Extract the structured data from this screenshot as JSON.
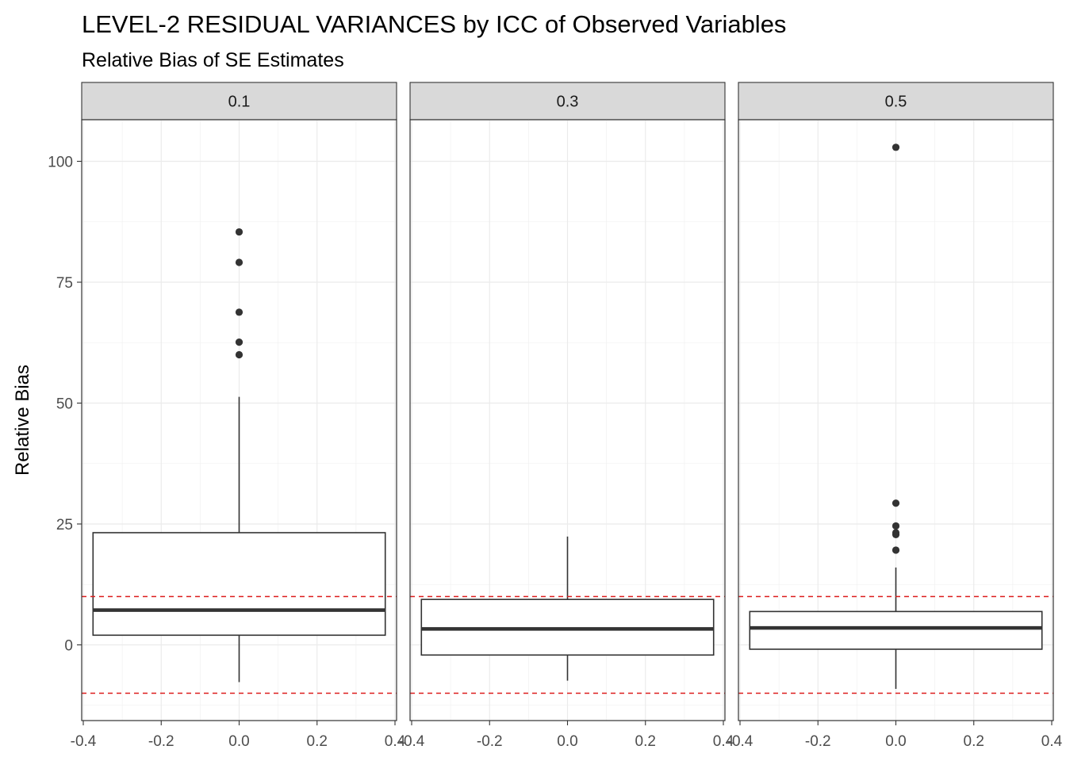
{
  "chart_data": {
    "type": "boxplot",
    "title": "LEVEL-2 RESIDUAL VARIANCES by ICC of Observed Variables",
    "subtitle": "Relative Bias of SE Estimates",
    "ylabel": "Relative Bias",
    "xlabel": "",
    "xlim": [
      -0.4,
      0.4
    ],
    "ylim": [
      -15,
      108
    ],
    "x_ticks": [
      -0.4,
      -0.2,
      0.0,
      0.2,
      0.4
    ],
    "x_tick_labels": [
      "-0.4",
      "-0.2",
      "0.0",
      "0.2",
      "0.4"
    ],
    "y_ticks": [
      0,
      25,
      50,
      75,
      100
    ],
    "y_tick_labels": [
      "0",
      "25",
      "50",
      "75",
      "100"
    ],
    "reference_lines": [
      10,
      -10
    ],
    "reference_line_color": "#dd1c1c",
    "grid": true,
    "panels": [
      {
        "label": "0.1",
        "box": {
          "whisker_low": -7.7,
          "q1": 2.0,
          "median": 7.2,
          "q3": 23.2,
          "whisker_high": 51.3
        },
        "outliers": [
          85.4,
          79.1,
          68.8,
          62.6,
          60.0
        ]
      },
      {
        "label": "0.3",
        "box": {
          "whisker_low": -7.4,
          "q1": -2.1,
          "median": 3.3,
          "q3": 9.4,
          "whisker_high": 22.4
        },
        "outliers": []
      },
      {
        "label": "0.5",
        "box": {
          "whisker_low": -9.1,
          "q1": -0.9,
          "median": 3.5,
          "q3": 6.9,
          "whisker_high": 16.0
        },
        "outliers": [
          102.9,
          29.3,
          24.6,
          23.2,
          22.8,
          19.6
        ]
      }
    ]
  }
}
